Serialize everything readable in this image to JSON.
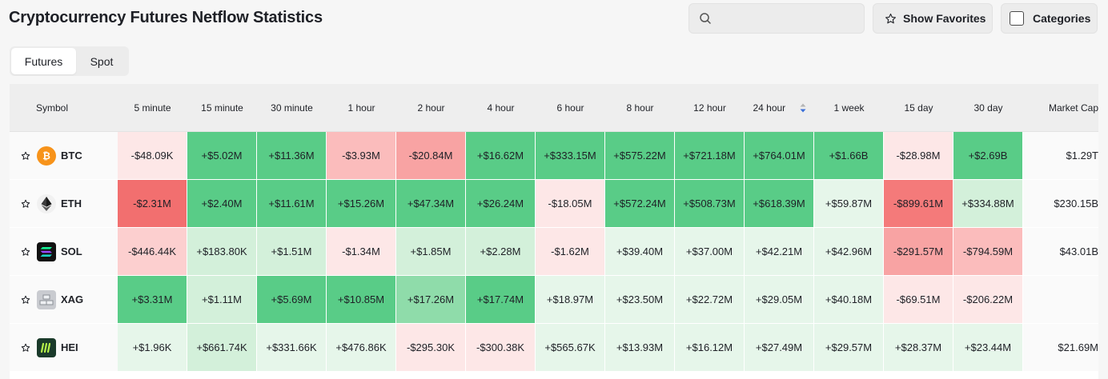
{
  "page_title": "Cryptocurrency Futures Netflow Statistics",
  "search": {
    "placeholder": ""
  },
  "buttons": {
    "show_favorites": "Show Favorites",
    "categories": "Categories"
  },
  "tabs": [
    {
      "label": "Futures",
      "active": true
    },
    {
      "label": "Spot",
      "active": false
    }
  ],
  "table": {
    "headers": [
      "Symbol",
      "5 minute",
      "15 minute",
      "30 minute",
      "1 hour",
      "2 hour",
      "4 hour",
      "6 hour",
      "8 hour",
      "12 hour",
      "24 hour",
      "1 week",
      "15 day",
      "30 day",
      "Market Cap"
    ],
    "sorted_column": "24 hour",
    "rows": [
      {
        "symbol": "BTC",
        "icon": "bitcoin-icon",
        "values": [
          "-$48.09K",
          "+$5.02M",
          "+$11.36M",
          "-$3.93M",
          "-$20.84M",
          "+$16.62M",
          "+$333.15M",
          "+$575.22M",
          "+$721.18M",
          "+$764.01M",
          "+$1.66B",
          "-$28.98M",
          "+$2.69B"
        ],
        "shades": [
          "r1",
          "g4",
          "g4",
          "r3",
          "r4",
          "g4",
          "g4",
          "g4",
          "g4",
          "g4",
          "g4",
          "r1",
          "g4"
        ],
        "market_cap": "$1.29T"
      },
      {
        "symbol": "ETH",
        "icon": "ethereum-icon",
        "values": [
          "-$2.31M",
          "+$2.40M",
          "+$11.61M",
          "+$15.26M",
          "+$47.34M",
          "+$26.24M",
          "-$18.05M",
          "+$572.24M",
          "+$508.73M",
          "+$618.39M",
          "+$59.87M",
          "-$899.61M",
          "+$334.88M"
        ],
        "shades": [
          "r6",
          "g4",
          "g4",
          "g4",
          "g4",
          "g4",
          "r1",
          "g4",
          "g4",
          "g4",
          "g1",
          "r5",
          "g2"
        ],
        "market_cap": "$230.15B"
      },
      {
        "symbol": "SOL",
        "icon": "solana-icon",
        "values": [
          "-$446.44K",
          "+$183.80K",
          "+$1.51M",
          "-$1.34M",
          "+$1.85M",
          "+$2.28M",
          "-$1.62M",
          "+$39.40M",
          "+$37.00M",
          "+$42.21M",
          "+$42.96M",
          "-$291.57M",
          "-$794.59M"
        ],
        "shades": [
          "r2",
          "g2",
          "g2",
          "r1",
          "g2",
          "g2",
          "r1",
          "g1",
          "g1",
          "g1",
          "g1",
          "r4",
          "r3"
        ],
        "market_cap": "$43.01B"
      },
      {
        "symbol": "XAG",
        "icon": "silver-icon",
        "values": [
          "+$3.31M",
          "+$1.11M",
          "+$5.69M",
          "+$10.85M",
          "+$17.26M",
          "+$17.74M",
          "+$18.97M",
          "+$23.50M",
          "+$22.72M",
          "+$29.05M",
          "+$40.18M",
          "-$69.51M",
          "-$206.22M"
        ],
        "shades": [
          "g4",
          "g2",
          "g4",
          "g4",
          "g3",
          "g4",
          "g1",
          "g1",
          "g1",
          "g1",
          "g1",
          "r1",
          "r1"
        ],
        "market_cap": ""
      },
      {
        "symbol": "HEI",
        "icon": "hei-icon",
        "values": [
          "+$1.96K",
          "+$661.74K",
          "+$331.66K",
          "+$476.86K",
          "-$295.30K",
          "-$300.38K",
          "+$565.67K",
          "+$13.93M",
          "+$16.12M",
          "+$27.49M",
          "+$29.57M",
          "+$28.37M",
          "+$23.44M"
        ],
        "shades": [
          "g1",
          "g2",
          "g1",
          "g1",
          "r1",
          "r1",
          "g1",
          "g1",
          "g1",
          "g1",
          "g1",
          "g1",
          "g1"
        ],
        "market_cap": "$21.69M"
      }
    ]
  }
}
